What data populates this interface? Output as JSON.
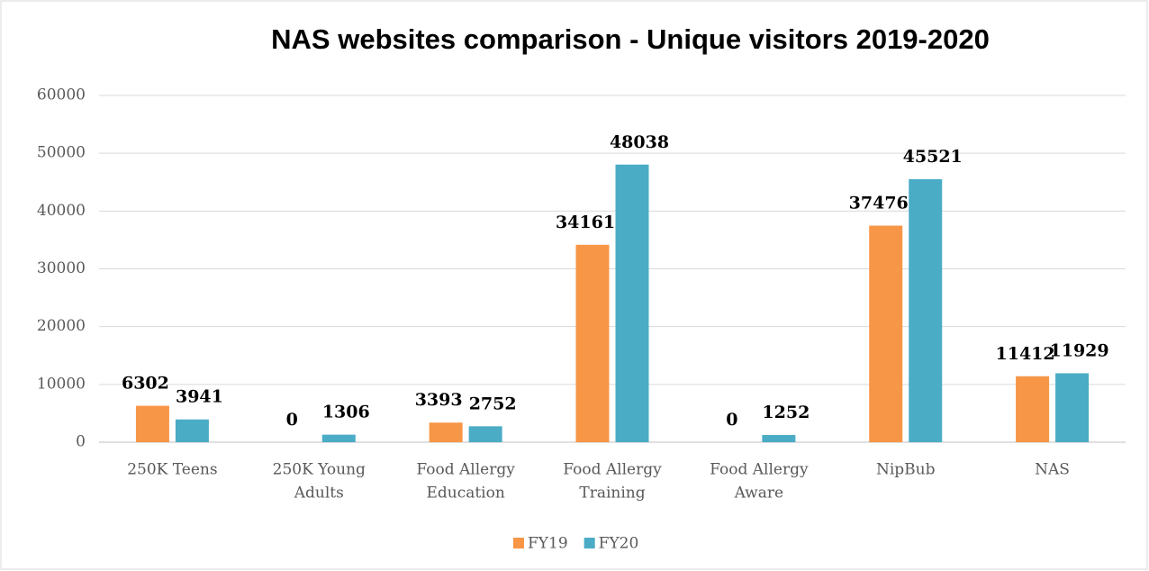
{
  "chart_data": {
    "type": "bar",
    "title": "NAS websites comparison - Unique visitors 2019-2020",
    "categories": [
      [
        "250K Teens"
      ],
      [
        "250K Young",
        "Adults"
      ],
      [
        "Food Allergy",
        "Education"
      ],
      [
        "Food Allergy",
        "Training"
      ],
      [
        "Food Allergy",
        "Aware"
      ],
      [
        "NipBub"
      ],
      [
        "NAS"
      ]
    ],
    "series": [
      {
        "name": "FY19",
        "color": "#f79646",
        "values": [
          6302,
          0,
          3393,
          34161,
          0,
          37476,
          11412
        ]
      },
      {
        "name": "FY20",
        "color": "#4bacc6",
        "values": [
          3941,
          1306,
          2752,
          48038,
          1252,
          45521,
          11929
        ]
      }
    ],
    "ylim": [
      0,
      60000
    ],
    "yticks": [
      0,
      10000,
      20000,
      30000,
      40000,
      50000,
      60000
    ],
    "grid": true,
    "legend": "bottom"
  }
}
